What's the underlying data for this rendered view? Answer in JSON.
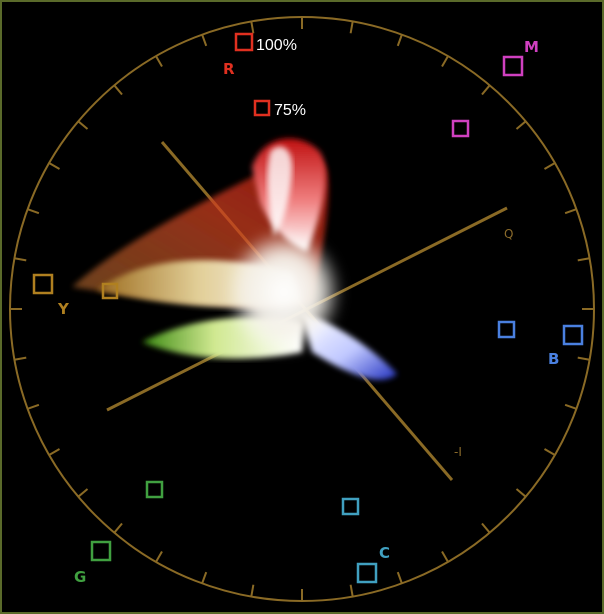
{
  "scope": {
    "target_100_label": "100%",
    "target_75_label": "75%",
    "axis_q_label": "Q",
    "axis_i_label": "-I",
    "colors": {
      "graticule": "#8a6a25",
      "red": "#e03020",
      "magenta": "#d040c0",
      "blue": "#4a80e0",
      "cyan": "#40a0c0",
      "green": "#40a040",
      "yellow": "#b08020"
    },
    "targets": [
      {
        "id": "R",
        "label": "R",
        "color": "#e03020"
      },
      {
        "id": "M",
        "label": "M",
        "color": "#d040c0"
      },
      {
        "id": "B",
        "label": "B",
        "color": "#4a80e0"
      },
      {
        "id": "C",
        "label": "C",
        "color": "#40a0c0"
      },
      {
        "id": "G",
        "label": "G",
        "color": "#40a040"
      },
      {
        "id": "Y",
        "label": "Y",
        "color": "#b08020"
      }
    ]
  }
}
